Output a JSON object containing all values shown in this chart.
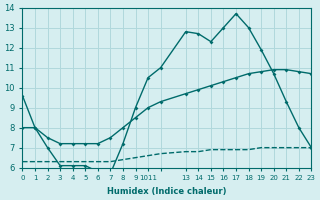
{
  "xlabel": "Humidex (Indice chaleur)",
  "bg_color": "#d6eef0",
  "grid_color": "#b0d8dc",
  "line_color": "#006b6b",
  "xlim": [
    0,
    23
  ],
  "ylim": [
    6,
    14
  ],
  "xticks": [
    0,
    1,
    2,
    3,
    4,
    5,
    6,
    7,
    8,
    9,
    10,
    11,
    13,
    14,
    15,
    16,
    17,
    18,
    19,
    20,
    21,
    22,
    23
  ],
  "xtick_labels": [
    "0",
    "1",
    "2",
    "3",
    "4",
    "5",
    "6",
    "7",
    "8",
    "9",
    "1011",
    "",
    "13",
    "14",
    "15",
    "16",
    "17",
    "18",
    "19",
    "20",
    "21",
    "22",
    "23"
  ],
  "yticks": [
    6,
    7,
    8,
    9,
    10,
    11,
    12,
    13,
    14
  ],
  "line1_x": [
    0,
    1,
    2,
    3,
    4,
    5,
    6,
    7,
    8,
    9,
    10,
    11,
    13,
    14,
    15,
    16,
    17,
    18,
    19,
    20,
    21,
    22,
    23
  ],
  "line1_y": [
    9.6,
    8.0,
    7.0,
    6.1,
    6.1,
    6.1,
    5.8,
    5.7,
    7.2,
    9.0,
    10.5,
    11.0,
    12.8,
    12.7,
    12.3,
    13.0,
    13.7,
    13.0,
    11.9,
    10.7,
    9.3,
    8.0,
    7.0
  ],
  "line2_x": [
    0,
    1,
    2,
    3,
    4,
    5,
    6,
    7,
    8,
    9,
    10,
    11,
    13,
    14,
    15,
    16,
    17,
    18,
    19,
    20,
    21,
    22,
    23
  ],
  "line2_y": [
    8.0,
    8.0,
    7.5,
    7.2,
    7.2,
    7.2,
    7.2,
    7.5,
    8.0,
    8.5,
    9.0,
    9.3,
    9.7,
    9.9,
    10.1,
    10.3,
    10.5,
    10.7,
    10.8,
    10.9,
    10.9,
    10.8,
    10.7
  ],
  "line3_x": [
    0,
    1,
    2,
    3,
    4,
    5,
    6,
    7,
    8,
    9,
    10,
    11,
    13,
    14,
    15,
    16,
    17,
    18,
    19,
    20,
    21,
    22,
    23
  ],
  "line3_y": [
    6.3,
    6.3,
    6.3,
    6.3,
    6.3,
    6.3,
    6.3,
    6.3,
    6.4,
    6.5,
    6.6,
    6.7,
    6.8,
    6.8,
    6.9,
    6.9,
    6.9,
    6.9,
    7.0,
    7.0,
    7.0,
    7.0,
    7.0
  ]
}
